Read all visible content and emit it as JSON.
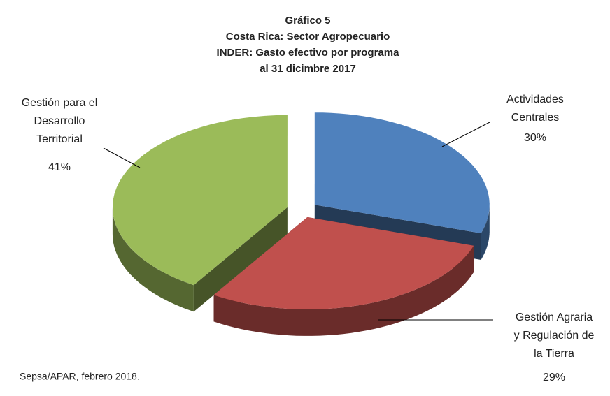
{
  "chart_data": {
    "type": "pie",
    "title_lines": [
      "Gráfico 5",
      "Costa Rica: Sector Agropecuario",
      "INDER: Gasto efectivo por programa",
      "al 31 dicimbre  2017"
    ],
    "categories": [
      "Actividades\nCentrales",
      "Gestión Agraria\ny Regulación de\nla Tierra",
      "Gestión para el\nDesarrollo\nTerritorial"
    ],
    "values": [
      30,
      29,
      41
    ],
    "value_labels": [
      "30%",
      "29%",
      "41%"
    ],
    "colors": [
      "#4f81bd",
      "#c0504d",
      "#9bbb59"
    ],
    "note": "Sepsa/APAR, febrero 2018."
  }
}
